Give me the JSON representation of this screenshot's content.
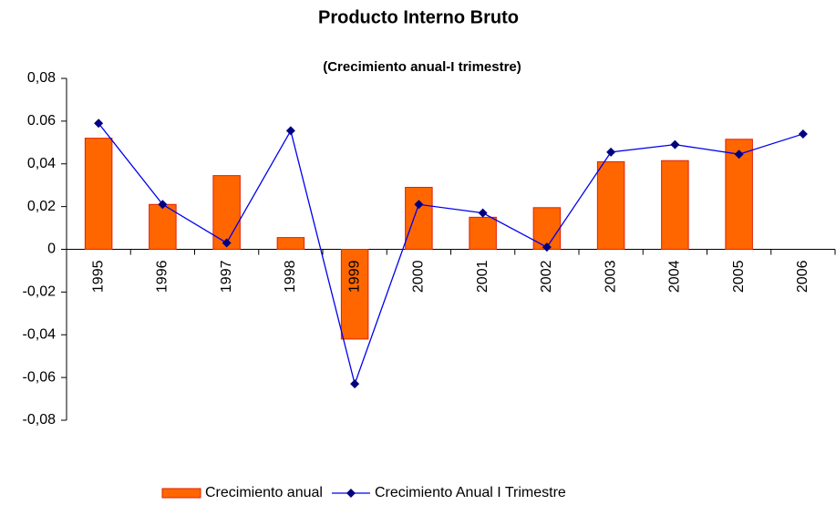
{
  "chart_data": {
    "type": "bar",
    "title": "Producto Interno Bruto",
    "subtitle": "(Crecimiento anual-I trimestre)",
    "categories": [
      "1995",
      "1996",
      "1997",
      "1998",
      "1999",
      "2000",
      "2001",
      "2002",
      "2003",
      "2004",
      "2005",
      "2006"
    ],
    "series": [
      {
        "name": "Crecimiento anual",
        "type": "bar",
        "color": "#ff6600",
        "values": [
          0.052,
          0.021,
          0.0345,
          0.0055,
          -0.042,
          0.029,
          0.015,
          0.0195,
          0.041,
          0.0415,
          0.0515,
          null
        ]
      },
      {
        "name": "Crecimiento Anual I Trimestre",
        "type": "line",
        "color": "#0000ee",
        "values": [
          0.059,
          0.021,
          0.003,
          0.0555,
          -0.063,
          0.021,
          0.017,
          0.001,
          0.0455,
          0.049,
          0.0445,
          0.054
        ]
      }
    ],
    "ylim": [
      -0.08,
      0.08
    ],
    "yticks": [
      {
        "value": 0.08,
        "label": "0,08"
      },
      {
        "value": 0.06,
        "label": "0.06"
      },
      {
        "value": 0.04,
        "label": "0,04"
      },
      {
        "value": 0.02,
        "label": "0,02"
      },
      0,
      {
        "value": -0.02,
        "label": "-0,02"
      },
      {
        "value": -0.04,
        "label": "-0,04"
      },
      {
        "value": -0.06,
        "label": "-0,06"
      },
      {
        "value": -0.08,
        "label": "-0,08"
      }
    ],
    "legend": "bottom"
  }
}
